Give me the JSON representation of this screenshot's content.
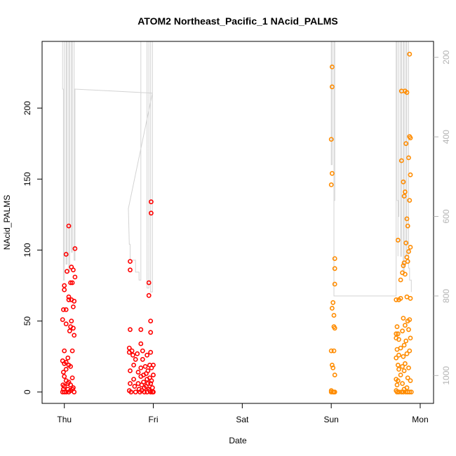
{
  "chart_data": {
    "type": "scatter",
    "title": "ATOM2 Northeast_Pacific_1 NAcid_PALMS",
    "xlabel": "Date",
    "ylabel": "NAcid_PALMS",
    "ylim": [
      -8,
      247
    ],
    "y_ticks": [
      0,
      50,
      100,
      150,
      200
    ],
    "x_range_days": [
      -0.25,
      4.15
    ],
    "x_ticks": [
      {
        "day": 0,
        "label": "Thu"
      },
      {
        "day": 1,
        "label": "Fri"
      },
      {
        "day": 2,
        "label": "Sat"
      },
      {
        "day": 3,
        "label": "Sun"
      },
      {
        "day": 4,
        "label": "Mon"
      }
    ],
    "right_axis": {
      "quantity": "pressure",
      "reversed": true,
      "range": [
        160,
        1070
      ],
      "ticks": [
        200,
        400,
        600,
        800,
        1000
      ],
      "color": "#b3b3b3"
    },
    "grid": false,
    "legend": "none",
    "series": [
      {
        "color": "#ff0000",
        "points": [
          [
            -0.02,
            51
          ],
          [
            -0.01,
            58
          ],
          [
            -0.02,
            22
          ],
          [
            -0.01,
            14
          ],
          [
            -0.015,
            5
          ],
          [
            -0.02,
            0
          ],
          [
            -0.01,
            2
          ],
          [
            0.0,
            75
          ],
          [
            0.0,
            72
          ],
          [
            0.0,
            29
          ],
          [
            0.0,
            20
          ],
          [
            0.0,
            11
          ],
          [
            0.0,
            4
          ],
          [
            0.0,
            0
          ],
          [
            0.02,
            97
          ],
          [
            0.02,
            58
          ],
          [
            0.02,
            48
          ],
          [
            0.02,
            21
          ],
          [
            0.02,
            16
          ],
          [
            0.02,
            8
          ],
          [
            0.02,
            0
          ],
          [
            0.03,
            85
          ],
          [
            0.04,
            24
          ],
          [
            0.04,
            6
          ],
          [
            0.04,
            2
          ],
          [
            0.05,
            117
          ],
          [
            0.05,
            67
          ],
          [
            0.05,
            65
          ],
          [
            0.05,
            19
          ],
          [
            0.05,
            7
          ],
          [
            0.05,
            0
          ],
          [
            0.06,
            43
          ],
          [
            0.07,
            77
          ],
          [
            0.07,
            46
          ],
          [
            0.07,
            18
          ],
          [
            0.07,
            5
          ],
          [
            0.07,
            1
          ],
          [
            0.08,
            88
          ],
          [
            0.08,
            65
          ],
          [
            0.08,
            50
          ],
          [
            0.09,
            77
          ],
          [
            0.09,
            29
          ],
          [
            0.09,
            10
          ],
          [
            0.09,
            2
          ],
          [
            0.1,
            86
          ],
          [
            0.1,
            60
          ],
          [
            0.1,
            45
          ],
          [
            0.1,
            3
          ],
          [
            0.11,
            64
          ],
          [
            0.11,
            40
          ],
          [
            0.11,
            0
          ],
          [
            0.12,
            81
          ],
          [
            0.12,
            101
          ],
          [
            0.74,
            92
          ],
          [
            0.74,
            86
          ],
          [
            0.74,
            44
          ],
          [
            0.73,
            31
          ],
          [
            0.73,
            28
          ],
          [
            0.74,
            15
          ],
          [
            0.74,
            6
          ],
          [
            0.73,
            1
          ],
          [
            0.75,
            0
          ],
          [
            0.76,
            29
          ],
          [
            0.77,
            26
          ],
          [
            0.78,
            19
          ],
          [
            0.78,
            9
          ],
          [
            0.79,
            4
          ],
          [
            0.8,
            0
          ],
          [
            0.8,
            23
          ],
          [
            0.82,
            27
          ],
          [
            0.83,
            14
          ],
          [
            0.83,
            6
          ],
          [
            0.84,
            2
          ],
          [
            0.85,
            0
          ],
          [
            0.86,
            44
          ],
          [
            0.86,
            34
          ],
          [
            0.86,
            17
          ],
          [
            0.86,
            11
          ],
          [
            0.87,
            5
          ],
          [
            0.87,
            1
          ],
          [
            0.88,
            29
          ],
          [
            0.88,
            23
          ],
          [
            0.89,
            12
          ],
          [
            0.89,
            7
          ],
          [
            0.9,
            3
          ],
          [
            0.9,
            0
          ],
          [
            0.91,
            18
          ],
          [
            0.92,
            13
          ],
          [
            0.92,
            4
          ],
          [
            0.93,
            26
          ],
          [
            0.93,
            9
          ],
          [
            0.93,
            0
          ],
          [
            0.94,
            15
          ],
          [
            0.94,
            6
          ],
          [
            0.95,
            2
          ],
          [
            0.95,
            77
          ],
          [
            0.95,
            68
          ],
          [
            0.96,
            19
          ],
          [
            0.96,
            10
          ],
          [
            0.96,
            1
          ],
          [
            0.97,
            50
          ],
          [
            0.97,
            42
          ],
          [
            0.97,
            28
          ],
          [
            0.97,
            6
          ],
          [
            0.97,
            0
          ],
          [
            0.975,
            134
          ],
          [
            0.975,
            126
          ],
          [
            0.98,
            17
          ],
          [
            0.98,
            8
          ],
          [
            0.99,
            3
          ],
          [
            1.0,
            19
          ],
          [
            1.0,
            12
          ],
          [
            1.0,
            0
          ],
          [
            0.99,
            0
          ]
        ]
      },
      {
        "color": "#ff8c00",
        "points": [
          [
            3.0,
            146
          ],
          [
            3.0,
            178
          ],
          [
            3.0,
            29
          ],
          [
            3.0,
            1
          ],
          [
            3.0,
            0
          ],
          [
            3.01,
            229
          ],
          [
            3.01,
            215
          ],
          [
            3.01,
            154
          ],
          [
            3.01,
            59
          ],
          [
            3.01,
            19
          ],
          [
            3.02,
            63
          ],
          [
            3.02,
            17
          ],
          [
            3.02,
            0
          ],
          [
            3.03,
            54
          ],
          [
            3.03,
            46
          ],
          [
            3.03,
            29
          ],
          [
            3.03,
            0
          ],
          [
            3.04,
            94
          ],
          [
            3.04,
            87
          ],
          [
            3.04,
            76
          ],
          [
            3.04,
            45
          ],
          [
            3.04,
            12
          ],
          [
            3.04,
            0
          ],
          [
            3.73,
            65
          ],
          [
            3.73,
            41
          ],
          [
            3.73,
            38
          ],
          [
            3.73,
            24
          ],
          [
            3.73,
            9
          ],
          [
            3.73,
            1
          ],
          [
            3.74,
            46
          ],
          [
            3.74,
            30
          ],
          [
            3.74,
            5
          ],
          [
            3.74,
            0
          ],
          [
            3.75,
            107
          ],
          [
            3.75,
            41
          ],
          [
            3.75,
            19
          ],
          [
            3.75,
            8
          ],
          [
            3.76,
            65
          ],
          [
            3.76,
            37
          ],
          [
            3.76,
            26
          ],
          [
            3.76,
            16
          ],
          [
            3.76,
            0
          ],
          [
            3.78,
            79
          ],
          [
            3.78,
            66
          ],
          [
            3.78,
            31
          ],
          [
            3.78,
            12
          ],
          [
            3.79,
            212
          ],
          [
            3.79,
            163
          ],
          [
            3.79,
            0
          ],
          [
            3.8,
            84
          ],
          [
            3.8,
            43
          ],
          [
            3.8,
            18
          ],
          [
            3.8,
            6
          ],
          [
            3.81,
            148
          ],
          [
            3.81,
            89
          ],
          [
            3.81,
            52
          ],
          [
            3.81,
            25
          ],
          [
            3.81,
            0
          ],
          [
            3.82,
            138
          ],
          [
            3.82,
            91
          ],
          [
            3.82,
            33
          ],
          [
            3.82,
            15
          ],
          [
            3.82,
            2
          ],
          [
            3.83,
            212
          ],
          [
            3.83,
            141
          ],
          [
            3.83,
            83
          ],
          [
            3.83,
            47
          ],
          [
            3.83,
            20
          ],
          [
            3.84,
            175
          ],
          [
            3.84,
            105
          ],
          [
            3.84,
            36
          ],
          [
            3.84,
            0
          ],
          [
            3.85,
            211
          ],
          [
            3.85,
            122
          ],
          [
            3.85,
            95
          ],
          [
            3.85,
            67
          ],
          [
            3.85,
            27
          ],
          [
            3.85,
            3
          ],
          [
            3.86,
            117
          ],
          [
            3.86,
            92
          ],
          [
            3.86,
            50
          ],
          [
            3.86,
            10
          ],
          [
            3.86,
            0
          ],
          [
            3.87,
            165
          ],
          [
            3.87,
            99
          ],
          [
            3.87,
            44
          ],
          [
            3.87,
            17
          ],
          [
            3.88,
            238
          ],
          [
            3.88,
            180
          ],
          [
            3.88,
            135
          ],
          [
            3.88,
            51
          ],
          [
            3.88,
            29
          ],
          [
            3.88,
            0
          ],
          [
            3.89,
            179
          ],
          [
            3.89,
            153
          ],
          [
            3.89,
            102
          ],
          [
            3.89,
            66
          ],
          [
            3.89,
            38
          ],
          [
            3.89,
            8
          ],
          [
            3.9,
            0
          ]
        ]
      }
    ],
    "line_series": {
      "color": "#d3d3d3",
      "note_pressure_values": [
        [
          -0.02,
          60
        ],
        [
          -0.02,
          280
        ],
        [
          -0.01,
          280
        ],
        [
          -0.01,
          760
        ],
        [
          0.0,
          760
        ],
        [
          0.0,
          60
        ],
        [
          0.02,
          60
        ],
        [
          0.02,
          720
        ],
        [
          0.03,
          720
        ],
        [
          0.03,
          60
        ],
        [
          0.05,
          60
        ],
        [
          0.05,
          740
        ],
        [
          0.06,
          740
        ],
        [
          0.06,
          60
        ],
        [
          0.08,
          60
        ],
        [
          0.08,
          690
        ],
        [
          0.09,
          690
        ],
        [
          0.09,
          60
        ],
        [
          0.11,
          60
        ],
        [
          0.11,
          710
        ],
        [
          0.12,
          710
        ],
        [
          0.12,
          280
        ],
        [
          0.99,
          290
        ],
        [
          0.72,
          580
        ],
        [
          0.73,
          670
        ],
        [
          0.74,
          670
        ],
        [
          0.74,
          710
        ],
        [
          0.8,
          710
        ],
        [
          0.8,
          740
        ],
        [
          0.84,
          740
        ],
        [
          0.84,
          760
        ],
        [
          0.86,
          760
        ],
        [
          0.86,
          60
        ],
        [
          0.93,
          60
        ],
        [
          0.93,
          780
        ],
        [
          0.95,
          780
        ],
        [
          0.95,
          60
        ],
        [
          0.97,
          60
        ],
        [
          0.97,
          790
        ],
        [
          0.99,
          790
        ],
        [
          0.99,
          60
        ],
        [
          3.0,
          60
        ],
        [
          3.0,
          470
        ],
        [
          3.01,
          470
        ],
        [
          3.01,
          60
        ],
        [
          3.03,
          60
        ],
        [
          3.03,
          560
        ],
        [
          3.04,
          560
        ],
        [
          3.04,
          60
        ],
        [
          3.03,
          60
        ],
        [
          3.03,
          800
        ],
        [
          3.73,
          800
        ],
        [
          3.73,
          690
        ],
        [
          3.73,
          60
        ],
        [
          3.74,
          60
        ],
        [
          3.74,
          560
        ],
        [
          3.75,
          560
        ],
        [
          3.75,
          700
        ],
        [
          3.75,
          600
        ],
        [
          3.76,
          600
        ],
        [
          3.76,
          60
        ],
        [
          3.78,
          60
        ],
        [
          3.78,
          700
        ],
        [
          3.79,
          700
        ],
        [
          3.79,
          60
        ],
        [
          3.81,
          60
        ],
        [
          3.81,
          740
        ],
        [
          3.82,
          740
        ],
        [
          3.82,
          60
        ],
        [
          3.84,
          60
        ],
        [
          3.84,
          700
        ],
        [
          3.85,
          700
        ],
        [
          3.85,
          60
        ],
        [
          3.87,
          60
        ],
        [
          3.87,
          730
        ],
        [
          3.88,
          730
        ],
        [
          3.88,
          760
        ],
        [
          3.9,
          760
        ],
        [
          3.9,
          790
        ]
      ]
    }
  }
}
